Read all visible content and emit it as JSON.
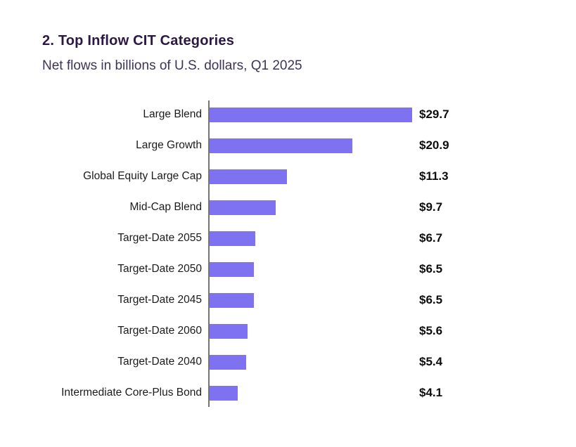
{
  "header": {
    "title": "2. Top Inflow CIT Categories",
    "subtitle": "Net flows in billions of U.S. dollars, Q1 2025"
  },
  "chart_data": {
    "type": "bar",
    "orientation": "horizontal",
    "title": "2. Top Inflow CIT Categories",
    "subtitle": "Net flows in billions of U.S. dollars, Q1 2025",
    "xlabel": "",
    "ylabel": "",
    "categories": [
      "Large Blend",
      "Large Growth",
      "Global Equity Large Cap",
      "Mid-Cap Blend",
      "Target-Date 2055",
      "Target-Date 2050",
      "Target-Date 2045",
      "Target-Date 2060",
      "Target-Date 2040",
      "Intermediate Core-Plus Bond"
    ],
    "values": [
      29.7,
      20.9,
      11.3,
      9.7,
      6.7,
      6.5,
      6.5,
      5.6,
      5.4,
      4.1
    ],
    "value_labels": [
      "$29.7",
      "$20.9",
      "$11.3",
      "$9.7",
      "$6.7",
      "$6.5",
      "$6.5",
      "$5.6",
      "$5.4",
      "$4.1"
    ],
    "xlim": [
      0,
      29.7
    ],
    "grid": false,
    "legend": false,
    "bar_color": "#7e72f0",
    "axis_color": "#757575",
    "value_label_color": "#0d0d0d",
    "category_label_color": "#1b1b1b",
    "title_color": "#2c1844",
    "subtitle_color": "#3e3457",
    "background_color": "#ffffff"
  }
}
